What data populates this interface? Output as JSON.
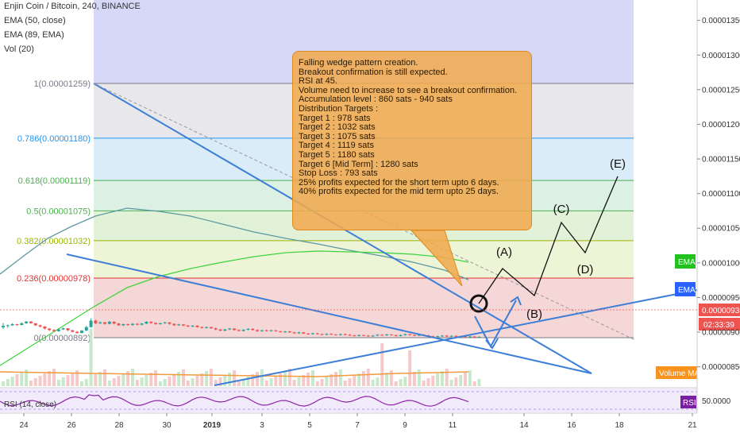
{
  "header": {
    "symbol_line": "Enjin Coin / Bitcoin, 240, BINANCE",
    "ema50": "EMA (50, close)",
    "ema89": "EMA (89, EMA)",
    "vol": "Vol (20)"
  },
  "annotation": {
    "lines": [
      "Falling wedge pattern creation.",
      "Breakout confirmation is still expected.",
      "RSI at 45.",
      "Volume need to increase to see a breakout confirmation.",
      "Accumulation level : 860 sats - 940 sats",
      "Distribution Targets :",
      "Target 1 : 978 sats",
      "Target 2 : 1032 sats",
      "Target 3 : 1075 sats",
      "Target 4 : 1119 sats",
      "Target 5 : 1180 sats",
      "Target 6 [Mid Term] : 1280 sats",
      "Stop Loss : 793 sats",
      "25% profits expected for the short term upto 6 days.",
      "40% profits expected for the mid term upto 25 days."
    ]
  },
  "chart_data": {
    "type": "candlestick",
    "price_axis": {
      "ticks": [
        "0.00001350",
        "0.00001300",
        "0.00001250",
        "0.00001200",
        "0.00001150",
        "0.00001100",
        "0.00001050",
        "0.00001000",
        "0.00000950",
        "0.00000900",
        "0.00000850"
      ],
      "ylim": [
        8.2e-06,
        1.38e-05
      ]
    },
    "date_axis": {
      "ticks": [
        "24",
        "26",
        "28",
        "30",
        "2019",
        "3",
        "5",
        "7",
        "9",
        "11",
        "14",
        "16",
        "18",
        "21"
      ]
    },
    "fib_levels": [
      {
        "label": "1(0.00001259)",
        "value": 1.259e-05,
        "color": "#787b86",
        "fill": "#e8e8ec"
      },
      {
        "label": "0.786(0.00001180)",
        "value": 1.18e-05,
        "color": "#2196f3",
        "fill": "#d9ecf8"
      },
      {
        "label": "0.618(0.00001119)",
        "value": 1.119e-05,
        "color": "#4caf50",
        "fill": "#dcf0e4"
      },
      {
        "label": "0.5(0.00001075)",
        "value": 1.075e-05,
        "color": "#4caf50",
        "fill": "#e2f2d9"
      },
      {
        "label": "0.382(0.00001032)",
        "value": 1.032e-05,
        "color": "#9cb400",
        "fill": "#eef4d6"
      },
      {
        "label": "0.236(0.00000978)",
        "value": 9.78e-06,
        "color": "#e03535",
        "fill": "#f6d7d7"
      },
      {
        "label": "0(0.00000892)",
        "value": 8.92e-06,
        "color": "#787b86",
        "fill": ""
      }
    ],
    "current_price": "0.00000935",
    "countdown": "02:33:39",
    "ema_badges": [
      "EMA",
      "EMA"
    ],
    "volume_ma_label": "Volume MA",
    "rsi": {
      "label": "RSI (14, close)",
      "value_tick": "50.0000",
      "badge": "RSI"
    },
    "wave_labels": [
      "(A)",
      "(B)",
      "(C)",
      "(D)",
      "(E)"
    ],
    "projection": {
      "x": [
        14,
        12.5,
        14,
        16.5,
        17.1,
        16.6,
        18.3
      ],
      "y": [
        9.35e-06,
        9.65e-06,
        9.45e-06,
        1.06e-05,
        1.02e-05,
        1.02e-05,
        1.13e-05
      ]
    },
    "candles": [
      [
        3.5,
        4,
        5,
        3
      ],
      [
        4,
        4.2,
        4.5,
        3.4
      ],
      [
        4.2,
        4.6,
        4.9,
        4
      ],
      [
        4.6,
        4.3,
        4.7,
        4
      ],
      [
        4.3,
        4.9,
        5.2,
        4.2
      ],
      [
        4.9,
        5.5,
        5.6,
        4.7
      ],
      [
        5.5,
        4.9,
        5.6,
        4.8
      ],
      [
        4.9,
        4.2,
        5,
        4
      ],
      [
        4.2,
        3.8,
        4.4,
        3.5
      ],
      [
        3.8,
        3.1,
        3.9,
        2.8
      ],
      [
        3.1,
        2.6,
        3.2,
        2.3
      ],
      [
        2.6,
        2.2,
        2.9,
        2
      ],
      [
        2.2,
        2.8,
        3,
        2
      ],
      [
        2.8,
        3.2,
        3.4,
        2.6
      ],
      [
        3.2,
        2.5,
        3.3,
        2.3
      ],
      [
        2.5,
        2,
        2.7,
        1.8
      ],
      [
        2,
        1.6,
        2.3,
        1.4
      ],
      [
        1.6,
        2.4,
        2.6,
        1.5
      ],
      [
        2.4,
        3.6,
        4,
        2.3
      ],
      [
        3.6,
        5.8,
        6.6,
        3.4
      ],
      [
        5.8,
        4.9,
        6.1,
        4.6
      ],
      [
        4.9,
        5.2,
        5.5,
        4.6
      ],
      [
        5.2,
        4.7,
        5.4,
        4.4
      ],
      [
        4.7,
        5.4,
        5.7,
        4.5
      ],
      [
        5.4,
        4.8,
        5.6,
        4.5
      ],
      [
        4.8,
        4.2,
        5,
        4
      ],
      [
        4.2,
        4.6,
        4.8,
        3.9
      ],
      [
        4.6,
        4.3,
        4.8,
        4
      ],
      [
        4.3,
        4.7,
        5,
        4.1
      ],
      [
        4.7,
        4.4,
        4.9,
        4.2
      ],
      [
        4.4,
        4.8,
        5,
        4.2
      ],
      [
        4.8,
        5.4,
        5.6,
        4.6
      ],
      [
        5.4,
        5.0,
        5.6,
        4.7
      ],
      [
        5,
        4.6,
        5.2,
        4.4
      ],
      [
        4.6,
        4.9,
        5.1,
        4.4
      ],
      [
        4.9,
        5.2,
        5.4,
        4.7
      ],
      [
        5.2,
        4.7,
        5.3,
        4.4
      ],
      [
        4.7,
        4.2,
        4.9,
        4
      ],
      [
        4.2,
        4.5,
        4.7,
        4
      ],
      [
        4.5,
        4.1,
        4.6,
        3.9
      ],
      [
        4.1,
        3.8,
        4.3,
        3.6
      ],
      [
        3.8,
        4.1,
        4.3,
        3.6
      ],
      [
        4.1,
        3.6,
        4.2,
        3.4
      ],
      [
        3.6,
        3.3,
        3.8,
        3.1
      ],
      [
        3.3,
        3.6,
        3.8,
        3.1
      ],
      [
        3.6,
        3.2,
        3.7,
        3
      ],
      [
        3.2,
        2.8,
        3.4,
        2.5
      ],
      [
        2.8,
        2.4,
        3,
        2.2
      ],
      [
        2.4,
        2.8,
        3,
        2.2
      ],
      [
        2.8,
        3.1,
        3.3,
        2.6
      ],
      [
        3.1,
        2.6,
        3.2,
        2.4
      ],
      [
        2.6,
        2.3,
        2.8,
        2.1
      ],
      [
        2.3,
        2.7,
        2.9,
        2.1
      ],
      [
        2.7,
        3.0,
        3.2,
        2.5
      ],
      [
        3,
        2.6,
        3.2,
        2.4
      ],
      [
        2.6,
        2.2,
        2.8,
        2
      ],
      [
        2.2,
        2.5,
        2.7,
        2
      ],
      [
        2.5,
        2.3,
        2.7,
        2.1
      ],
      [
        2.3,
        2.5,
        2.7,
        2.1
      ],
      [
        2.5,
        2.2,
        2.6,
        2
      ],
      [
        2.2,
        1.9,
        2.3,
        1.7
      ],
      [
        1.9,
        2.1,
        2.3,
        1.7
      ],
      [
        2.1,
        1.8,
        2.3,
        1.6
      ],
      [
        1.8,
        1.5,
        2,
        1.3
      ],
      [
        1.5,
        1.8,
        2,
        1.3
      ],
      [
        1.8,
        1.4,
        1.9,
        1.2
      ],
      [
        1.4,
        1.2,
        1.6,
        1
      ],
      [
        1.2,
        1.5,
        1.7,
        1
      ],
      [
        1.5,
        1.2,
        1.6,
        1
      ],
      [
        1.2,
        1.0,
        1.4,
        0.8
      ],
      [
        1,
        1.3,
        1.5,
        0.8
      ],
      [
        1.3,
        1.1,
        1.5,
        0.9
      ],
      [
        1.1,
        0.9,
        1.2,
        0.7
      ],
      [
        0.9,
        1.2,
        1.4,
        0.7
      ],
      [
        1.2,
        1.0,
        1.4,
        0.8
      ],
      [
        1,
        0.8,
        1.2,
        0.6
      ],
      [
        0.8,
        0.6,
        1,
        0.4
      ],
      [
        0.6,
        0.9,
        1.1,
        0.4
      ],
      [
        0.9,
        0.7,
        1,
        0.5
      ],
      [
        0.7,
        0.5,
        0.9,
        0.3
      ],
      [
        0.5,
        0.7,
        0.9,
        0.3
      ],
      [
        0.7,
        1.0,
        1.2,
        0.6
      ],
      [
        1,
        0.8,
        1.2,
        0.6
      ],
      [
        0.8,
        1.1,
        1.3,
        0.6
      ],
      [
        1.1,
        0.9,
        1.2,
        0.7
      ],
      [
        0.9,
        0.6,
        1,
        0.4
      ],
      [
        0.6,
        0.9,
        1.1,
        0.4
      ],
      [
        0.9,
        1.2,
        1.4,
        0.7
      ],
      [
        1.2,
        0.9,
        1.3,
        0.7
      ],
      [
        0.9,
        0.7,
        1.1,
        0.5
      ],
      [
        0.7,
        1.0,
        1.2,
        0.5
      ],
      [
        1,
        0.8,
        1.2,
        0.6
      ],
      [
        0.8,
        0.5,
        1,
        0.3
      ],
      [
        0.5,
        0.2,
        0.7,
        0
      ],
      [
        0.2,
        0.5,
        0.7,
        0
      ],
      [
        0.5,
        0.7,
        0.9,
        0.3
      ],
      [
        0.7,
        0.4,
        0.9,
        0.2
      ],
      [
        0.4,
        0.6,
        0.8,
        0.2
      ],
      [
        0.6,
        0.3,
        0.8,
        0.1
      ],
      [
        0.3,
        0.5,
        0.7,
        0.1
      ],
      [
        0.5,
        0.2,
        0.7,
        0
      ],
      [
        0.2,
        0.4,
        0.6,
        0
      ],
      [
        0.4,
        0.1,
        0.5,
        -0.1
      ],
      [
        0.1,
        0.3,
        0.5,
        -0.1
      ]
    ]
  }
}
